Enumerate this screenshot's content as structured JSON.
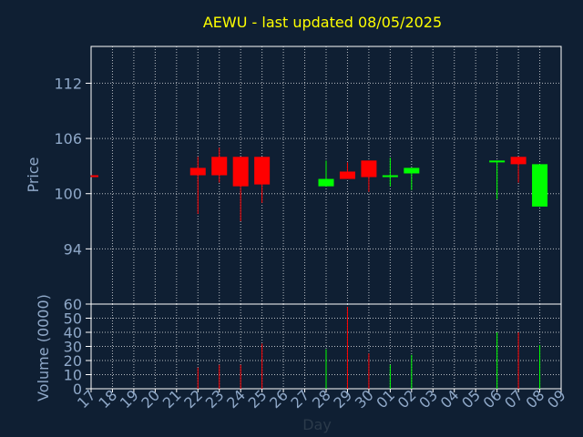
{
  "chart_data": {
    "type": "candlestick",
    "title": "AEWU - last updated 08/05/2025",
    "xlabel": "Day",
    "ylabel_price": "Price",
    "ylabel_volume": "Volume (0000)",
    "x_ticks": [
      "17",
      "18",
      "19",
      "20",
      "21",
      "22",
      "23",
      "24",
      "25",
      "26",
      "27",
      "28",
      "29",
      "30",
      "01",
      "02",
      "03",
      "04",
      "05",
      "06",
      "07",
      "08",
      "09"
    ],
    "price_ylim": [
      88,
      116
    ],
    "price_ticks": [
      94,
      100,
      106,
      112
    ],
    "volume_ylim": [
      0,
      60
    ],
    "volume_ticks": [
      0,
      10,
      20,
      30,
      40,
      50,
      60
    ],
    "grid": true,
    "colors": {
      "up": "#00ff00",
      "down": "#ff0000",
      "title": "#ffff00",
      "axis_text": "#8fa8c8",
      "background": "#0f1f33",
      "grid": "#ffffff"
    },
    "candles": [
      {
        "day": "17",
        "open": 102.0,
        "high": 102.0,
        "low": 101.8,
        "close": 101.8,
        "volume": 0
      },
      {
        "day": "22",
        "open": 102.8,
        "high": 104.0,
        "low": 97.8,
        "close": 102.0,
        "volume": 15
      },
      {
        "day": "23",
        "open": 104.0,
        "high": 105.0,
        "low": 101.2,
        "close": 102.0,
        "volume": 17
      },
      {
        "day": "24",
        "open": 104.0,
        "high": 104.0,
        "low": 97.0,
        "close": 100.8,
        "volume": 17
      },
      {
        "day": "25",
        "open": 104.0,
        "high": 104.0,
        "low": 99.0,
        "close": 101.0,
        "volume": 32
      },
      {
        "day": "28",
        "open": 100.8,
        "high": 103.6,
        "low": 100.8,
        "close": 101.6,
        "volume": 28
      },
      {
        "day": "29",
        "open": 102.4,
        "high": 103.4,
        "low": 101.6,
        "close": 101.6,
        "volume": 58
      },
      {
        "day": "30",
        "open": 103.6,
        "high": 103.6,
        "low": 100.2,
        "close": 101.8,
        "volume": 25
      },
      {
        "day": "01",
        "open": 101.8,
        "high": 103.9,
        "low": 100.8,
        "close": 102.0,
        "volume": 17
      },
      {
        "day": "02",
        "open": 102.2,
        "high": 102.8,
        "low": 100.4,
        "close": 102.8,
        "volume": 24
      },
      {
        "day": "06",
        "open": 103.4,
        "high": 103.6,
        "low": 99.4,
        "close": 103.6,
        "volume": 40
      },
      {
        "day": "07",
        "open": 104.0,
        "high": 104.0,
        "low": 101.2,
        "close": 103.2,
        "volume": 40
      },
      {
        "day": "08",
        "open": 98.6,
        "high": 103.2,
        "low": 98.6,
        "close": 103.2,
        "volume": 31
      }
    ]
  }
}
